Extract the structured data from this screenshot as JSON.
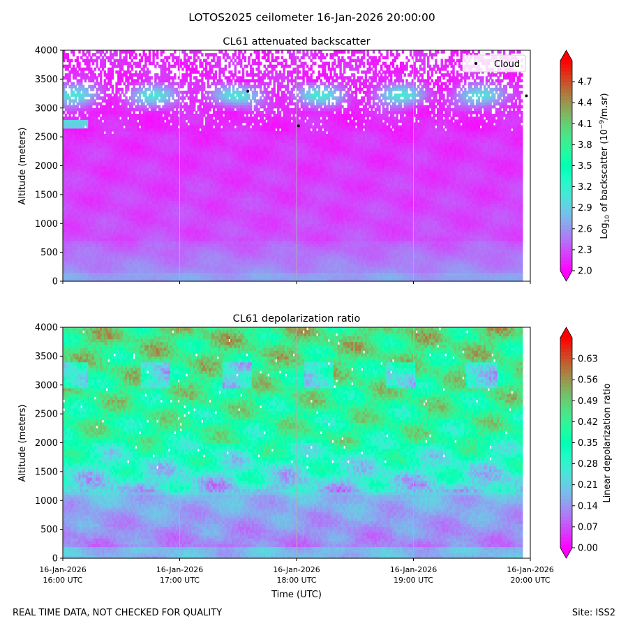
{
  "suptitle": "LOTOS2025 ceilometer 16-Jan-2026 20:00:00",
  "footer_left": "REAL TIME DATA, NOT CHECKED FOR QUALITY",
  "footer_right": "Site: ISS2",
  "colors": {
    "cloud_marker": "#000000",
    "colormap": "rainbow",
    "grid": "#b0b0b0"
  },
  "chart_data": [
    {
      "type": "heatmap",
      "title": "CL61 attenuated backscatter",
      "ylabel": "Altitude (meters)",
      "xlabel": "",
      "ylim": [
        0,
        4000
      ],
      "yticks": [
        0,
        500,
        1000,
        1500,
        2000,
        2500,
        3000,
        3500,
        4000
      ],
      "xticks": [
        "16-Jan-2026 16:00 UTC",
        "16-Jan-2026 17:00 UTC",
        "16-Jan-2026 18:00 UTC",
        "16-Jan-2026 19:00 UTC",
        "16-Jan-2026 20:00 UTC"
      ],
      "xtick_labels_visible": false,
      "xlim": [
        "16-Jan-2026 16:00 UTC",
        "16-Jan-2026 20:00 UTC"
      ],
      "grid": "vertical at hourly ticks",
      "colorbar": {
        "label_prefix": "Log",
        "label_sub": "10",
        "label_mid": " of backscatter (10",
        "label_sup": "−9",
        "label_suffix": "/m.sr)",
        "min": 2.0,
        "max": 5.0,
        "ticks": [
          "2.0",
          "2.3",
          "2.6",
          "2.9",
          "3.2",
          "3.5",
          "3.8",
          "4.1",
          "4.4",
          "4.7"
        ],
        "extend": "both"
      },
      "legend": {
        "entries": [
          "Cloud"
        ],
        "placement": "upper right"
      },
      "cloud_points": [
        {
          "time": "16-Jan-2026 17:35 UTC",
          "altitude": 3290
        },
        {
          "time": "16-Jan-2026 18:01 UTC",
          "altitude": 2690
        },
        {
          "time": "16-Jan-2026 19:58 UTC",
          "altitude": 3210
        }
      ]
    },
    {
      "type": "heatmap",
      "title": "CL61 depolarization ratio",
      "ylabel": "Altitude (meters)",
      "xlabel": "Time (UTC)",
      "ylim": [
        0,
        4000
      ],
      "yticks": [
        0,
        500,
        1000,
        1500,
        2000,
        2500,
        3000,
        3500,
        4000
      ],
      "xticks": [
        "16-Jan-2026 16:00 UTC",
        "16-Jan-2026 17:00 UTC",
        "16-Jan-2026 18:00 UTC",
        "16-Jan-2026 19:00 UTC",
        "16-Jan-2026 20:00 UTC"
      ],
      "xtick_labels": [
        [
          "16-Jan-2026",
          "16:00 UTC"
        ],
        [
          "16-Jan-2026",
          "17:00 UTC"
        ],
        [
          "16-Jan-2026",
          "18:00 UTC"
        ],
        [
          "16-Jan-2026",
          "19:00 UTC"
        ],
        [
          "16-Jan-2026",
          "20:00 UTC"
        ]
      ],
      "xlim": [
        "16-Jan-2026 16:00 UTC",
        "16-Jan-2026 20:00 UTC"
      ],
      "grid": "vertical at hourly ticks",
      "colorbar": {
        "label": "Linear depolarization ratio",
        "min": 0.0,
        "max": 0.7,
        "ticks": [
          "0.00",
          "0.07",
          "0.14",
          "0.21",
          "0.28",
          "0.35",
          "0.42",
          "0.49",
          "0.56",
          "0.63"
        ],
        "extend": "both"
      }
    }
  ]
}
